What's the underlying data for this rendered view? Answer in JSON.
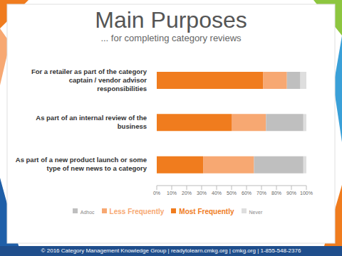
{
  "chart_data": {
    "type": "bar",
    "title": "Main Purposes",
    "subtitle": "... for completing category reviews",
    "orientation": "horizontal",
    "stacked": true,
    "grid": false,
    "legend": "bottom",
    "categories": [
      "For a retailer as part of the category captain / vendor advisor responsibilities",
      "As part of an internal review of the business",
      "As part of a new product launch or some type of new news to a category"
    ],
    "series": [
      {
        "name": "Most Frequently",
        "color": "#f07c1e",
        "values": [
          71,
          50,
          31
        ]
      },
      {
        "name": "Less Frequently",
        "color": "#f7a872",
        "values": [
          16,
          23,
          34
        ]
      },
      {
        "name": "Adhoc",
        "color": "#bfbfbf",
        "values": [
          9,
          25,
          33
        ]
      },
      {
        "name": "Never",
        "color": "#dedede",
        "values": [
          4,
          2,
          2
        ]
      }
    ],
    "xlim": [
      0,
      100
    ],
    "xticks": [
      {
        "value": 0,
        "label": "0%"
      },
      {
        "value": 10,
        "label": "10%"
      },
      {
        "value": 20,
        "label": "20%"
      },
      {
        "value": 30,
        "label": "30%"
      },
      {
        "value": 40,
        "label": "40%"
      },
      {
        "value": 50,
        "label": "50%"
      },
      {
        "value": 60,
        "label": "60%"
      },
      {
        "value": 70,
        "label": "70%"
      },
      {
        "value": 80,
        "label": "80%"
      },
      {
        "value": 90,
        "label": "90%"
      },
      {
        "value": 100,
        "label": "100%"
      }
    ],
    "annotations": [
      "© 2016 Category Management Knowledge Group | readytolearn.cmkg.org | cmkg.org | 1-855-548-2376"
    ]
  }
}
